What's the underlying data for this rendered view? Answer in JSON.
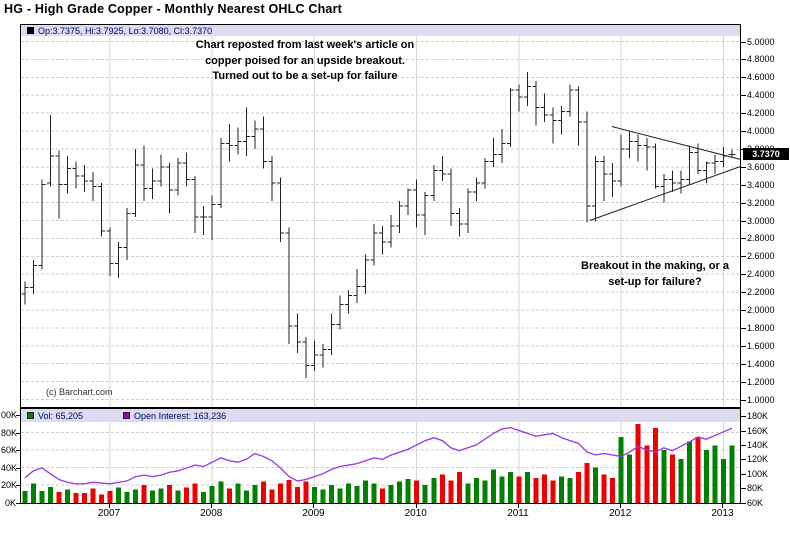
{
  "title": "HG - High Grade Copper - Monthly Nearest OHLC Chart",
  "price_panel": {
    "ohlc_legend": "Op:3.7375, Hi:3.7925, Lo:3.7080, Cl:3.7370",
    "last_price_tag": "3.7370",
    "annotation_top": [
      "Chart reposted from last week's article on",
      "copper poised for an upside breakout.",
      "Turned out to be a set-up for failure"
    ],
    "annotation_right": [
      "Breakout in the making, or a",
      "set-up for failure?"
    ],
    "copyright": "(c) Barchart.com",
    "y_axis_labels": [
      "5.0000",
      "4.8000",
      "4.6000",
      "4.4000",
      "4.2000",
      "4.0000",
      "3.8000",
      "3.6000",
      "3.4000",
      "3.2000",
      "3.0000",
      "2.8000",
      "2.6000",
      "2.4000",
      "2.2000",
      "2.0000",
      "1.8000",
      "1.6000",
      "1.4000",
      "1.2000",
      "1.0000"
    ]
  },
  "volume_panel": {
    "vol_label": "Vol: 65,205",
    "oi_label": "Open Interest: 163,236",
    "left_axis": [
      {
        "label": "00K",
        "value": 100
      },
      {
        "label": "80K",
        "value": 80
      },
      {
        "label": "60K",
        "value": 60
      },
      {
        "label": "40K",
        "value": 40
      },
      {
        "label": "20K",
        "value": 20
      },
      {
        "label": "0K",
        "value": 0
      }
    ],
    "right_axis": [
      {
        "label": "180K",
        "value": 180
      },
      {
        "label": "160K",
        "value": 160
      },
      {
        "label": "140K",
        "value": 140
      },
      {
        "label": "120K",
        "value": 120
      },
      {
        "label": "100K",
        "value": 100
      },
      {
        "label": "80K",
        "value": 80
      },
      {
        "label": "60K",
        "value": 60
      }
    ]
  },
  "x_axis": {
    "years": [
      "2007",
      "2008",
      "2009",
      "2010",
      "2011",
      "2012",
      "2013"
    ]
  },
  "colors": {
    "up_volume": "#008000",
    "down_volume": "#ee0000",
    "open_interest_line": "#9933ee",
    "oi_swatch": "#9900cc",
    "legend_bg": "#dcdcf0",
    "legend_text": "#000066",
    "price_bar": "#222222",
    "grid": "#c8d0c8",
    "year_grid": "#d6d6d6",
    "tag_bg": "#000000",
    "tag_fg": "#ffffff"
  },
  "chart_data": [
    {
      "type": "ohlc",
      "title": "HG High Grade Copper, Monthly Nearest",
      "x_unit": "month",
      "start_month": "2006-03",
      "end_month": "2013-02",
      "ylim": [
        1.0,
        5.0
      ],
      "ytick": 0.2,
      "grid": true,
      "bars": [
        [
          2.18,
          2.32,
          2.06,
          2.25
        ],
        [
          2.25,
          2.56,
          2.18,
          2.5
        ],
        [
          2.5,
          3.46,
          2.45,
          3.4
        ],
        [
          3.42,
          4.18,
          3.38,
          3.72
        ],
        [
          3.72,
          3.78,
          3.02,
          3.4
        ],
        [
          3.4,
          3.72,
          3.3,
          3.58
        ],
        [
          3.58,
          3.66,
          3.36,
          3.5
        ],
        [
          3.5,
          3.62,
          3.32,
          3.44
        ],
        [
          3.44,
          3.54,
          3.22,
          3.38
        ],
        [
          3.38,
          3.42,
          2.82,
          2.88
        ],
        [
          2.88,
          2.92,
          2.38,
          2.52
        ],
        [
          2.52,
          2.76,
          2.36,
          2.7
        ],
        [
          2.7,
          3.14,
          2.56,
          3.08
        ],
        [
          3.08,
          3.8,
          3.04,
          3.62
        ],
        [
          3.62,
          3.84,
          3.22,
          3.36
        ],
        [
          3.36,
          3.58,
          3.24,
          3.44
        ],
        [
          3.44,
          3.74,
          3.38,
          3.6
        ],
        [
          3.6,
          3.64,
          3.08,
          3.34
        ],
        [
          3.34,
          3.7,
          3.28,
          3.64
        ],
        [
          3.64,
          3.76,
          3.38,
          3.46
        ],
        [
          3.46,
          3.5,
          2.86,
          3.04
        ],
        [
          3.04,
          3.16,
          2.84,
          3.04
        ],
        [
          3.04,
          3.28,
          2.78,
          3.18
        ],
        [
          3.18,
          3.92,
          3.14,
          3.86
        ],
        [
          3.86,
          4.08,
          3.66,
          3.84
        ],
        [
          3.84,
          4.04,
          3.74,
          3.88
        ],
        [
          3.88,
          4.26,
          3.72,
          3.94
        ],
        [
          3.94,
          4.12,
          3.8,
          4.02
        ],
        [
          4.02,
          4.16,
          3.58,
          3.66
        ],
        [
          3.66,
          3.72,
          3.22,
          3.42
        ],
        [
          3.42,
          3.48,
          2.76,
          2.86
        ],
        [
          2.86,
          2.92,
          1.62,
          1.82
        ],
        [
          1.82,
          1.96,
          1.52,
          1.64
        ],
        [
          1.64,
          1.7,
          1.24,
          1.38
        ],
        [
          1.38,
          1.66,
          1.32,
          1.5
        ],
        [
          1.5,
          1.62,
          1.36,
          1.56
        ],
        [
          1.56,
          1.96,
          1.5,
          1.84
        ],
        [
          1.84,
          2.16,
          1.78,
          2.06
        ],
        [
          2.06,
          2.22,
          1.96,
          2.16
        ],
        [
          2.16,
          2.46,
          2.08,
          2.26
        ],
        [
          2.26,
          2.62,
          2.18,
          2.56
        ],
        [
          2.56,
          2.96,
          2.5,
          2.86
        ],
        [
          2.86,
          2.94,
          2.62,
          2.76
        ],
        [
          2.76,
          3.06,
          2.7,
          2.94
        ],
        [
          2.94,
          3.22,
          2.86,
          3.16
        ],
        [
          3.16,
          3.36,
          3.06,
          3.34
        ],
        [
          3.34,
          3.46,
          2.92,
          3.06
        ],
        [
          3.06,
          3.32,
          2.84,
          3.28
        ],
        [
          3.28,
          3.62,
          3.22,
          3.56
        ],
        [
          3.56,
          3.72,
          3.44,
          3.52
        ],
        [
          3.52,
          3.58,
          2.94,
          3.08
        ],
        [
          3.08,
          3.14,
          2.82,
          2.96
        ],
        [
          2.96,
          3.36,
          2.86,
          3.32
        ],
        [
          3.32,
          3.48,
          3.22,
          3.42
        ],
        [
          3.42,
          3.7,
          3.36,
          3.66
        ],
        [
          3.66,
          3.92,
          3.6,
          3.74
        ],
        [
          3.74,
          4.02,
          3.64,
          3.86
        ],
        [
          3.86,
          4.48,
          3.82,
          4.46
        ],
        [
          4.46,
          4.52,
          4.22,
          4.38
        ],
        [
          4.38,
          4.66,
          4.28,
          4.5
        ],
        [
          4.5,
          4.56,
          4.06,
          4.26
        ],
        [
          4.26,
          4.42,
          4.1,
          4.18
        ],
        [
          4.18,
          4.26,
          3.86,
          4.12
        ],
        [
          4.12,
          4.28,
          3.96,
          4.22
        ],
        [
          4.22,
          4.52,
          4.16,
          4.46
        ],
        [
          4.46,
          4.5,
          3.84,
          4.1
        ],
        [
          4.1,
          4.22,
          2.98,
          3.16
        ],
        [
          3.16,
          3.72,
          2.99,
          3.66
        ],
        [
          3.66,
          3.72,
          3.22,
          3.52
        ],
        [
          3.52,
          3.64,
          3.26,
          3.44
        ],
        [
          3.44,
          3.96,
          3.38,
          3.8
        ],
        [
          3.8,
          4.0,
          3.7,
          3.88
        ],
        [
          3.88,
          3.96,
          3.66,
          3.84
        ],
        [
          3.84,
          3.92,
          3.56,
          3.82
        ],
        [
          3.82,
          3.86,
          3.36,
          3.38
        ],
        [
          3.38,
          3.52,
          3.2,
          3.46
        ],
        [
          3.46,
          3.56,
          3.32,
          3.42
        ],
        [
          3.42,
          3.56,
          3.3,
          3.46
        ],
        [
          3.46,
          3.84,
          3.4,
          3.76
        ],
        [
          3.76,
          3.86,
          3.52,
          3.56
        ],
        [
          3.56,
          3.66,
          3.42,
          3.64
        ],
        [
          3.64,
          3.74,
          3.52,
          3.66
        ],
        [
          3.66,
          3.82,
          3.6,
          3.72
        ],
        [
          3.7375,
          3.7925,
          3.708,
          3.737
        ]
      ],
      "trendlines": {
        "upper": {
          "i1": 68.9,
          "p1": 4.05,
          "i2": 84.5,
          "p2": 3.67
        },
        "lower": {
          "i1": 66.3,
          "p1": 3.0,
          "i2": 84.5,
          "p2": 3.62
        }
      }
    },
    {
      "type": "bar+line",
      "start_month": "2006-03",
      "left_ylim": [
        0,
        100
      ],
      "right_ylim": [
        60,
        180
      ],
      "series": [
        {
          "name": "Volume",
          "axis": "left",
          "unit": "K",
          "values": [
            13,
            22,
            13,
            18,
            12,
            15,
            11,
            11,
            16,
            9,
            13,
            17,
            12,
            15,
            20,
            14,
            16,
            20,
            14,
            17,
            22,
            12,
            19,
            24,
            16,
            22,
            14,
            20,
            24,
            15,
            22,
            26,
            18,
            24,
            18,
            15,
            20,
            16,
            22,
            19,
            25,
            22,
            16,
            20,
            24,
            27,
            25,
            20,
            28,
            32,
            25,
            35,
            22,
            28,
            25,
            38,
            30,
            35,
            30,
            35,
            28,
            32,
            25,
            30,
            28,
            35,
            45,
            40,
            32,
            28,
            75,
            55,
            90,
            65,
            85,
            60,
            55,
            50,
            70,
            75,
            60,
            65,
            50,
            65.2
          ]
        },
        {
          "name": "Open Interest",
          "axis": "right",
          "unit": "K",
          "values": [
            94,
            104,
            108,
            100,
            92,
            88,
            86,
            86,
            88,
            87,
            86,
            88,
            90,
            96,
            98,
            96,
            98,
            102,
            104,
            108,
            112,
            110,
            116,
            122,
            118,
            116,
            120,
            128,
            124,
            118,
            108,
            96,
            90,
            92,
            96,
            100,
            106,
            110,
            112,
            114,
            118,
            122,
            120,
            126,
            130,
            134,
            140,
            146,
            150,
            146,
            136,
            132,
            136,
            140,
            148,
            156,
            162,
            164,
            160,
            156,
            152,
            154,
            156,
            150,
            146,
            142,
            130,
            126,
            128,
            126,
            124,
            130,
            138,
            133,
            130,
            136,
            132,
            138,
            144,
            151,
            148,
            153,
            158,
            163.2
          ]
        }
      ]
    }
  ]
}
